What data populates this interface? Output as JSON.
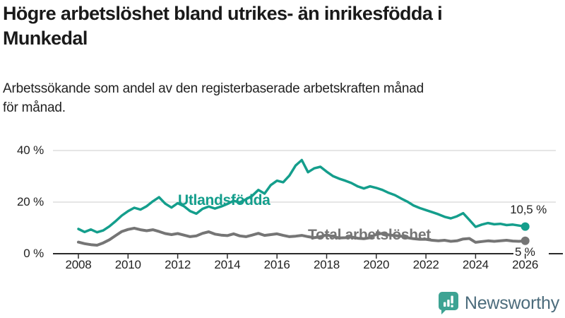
{
  "chart_data": {
    "type": "line",
    "title": "Högre arbetslöshet bland utrikes- än inrikesfödda i Munkedal",
    "title_lines": [
      "Högre arbetslöshet bland utrikes- än inrikesfödda i",
      "Munkedal"
    ],
    "subtitle": "Arbetssökande som andel av den registerbaserade arbetskraften månad för månad.",
    "subtitle_lines": [
      "Arbetssökande som andel av den registerbaserade arbetskraften månad",
      "för månad."
    ],
    "unit": "%",
    "x_start": 2008,
    "x_step": 0.25,
    "xlim": [
      2007,
      2026.5
    ],
    "ylim": [
      0,
      44
    ],
    "grid": "horizontal",
    "x_ticks": [
      2008,
      2010,
      2012,
      2014,
      2016,
      2018,
      2020,
      2022,
      2024,
      2026
    ],
    "y_ticks": [
      {
        "value": 40,
        "label": "40 %"
      },
      {
        "value": 20,
        "label": "20 %"
      },
      {
        "value": 0,
        "label": "0 %"
      }
    ],
    "series": [
      {
        "name": "Utlandsfödda",
        "color": "#149e8c",
        "end_label": "10,5 %",
        "end_value": 10.5,
        "values": [
          9.6,
          8.4,
          9.4,
          8.3,
          9.0,
          10.6,
          12.6,
          14.8,
          16.5,
          17.8,
          17.1,
          18.4,
          20.3,
          21.9,
          19.4,
          17.9,
          19.6,
          18.4,
          16.5,
          15.5,
          17.4,
          18.3,
          17.5,
          18.3,
          19.3,
          20.5,
          19.9,
          21.1,
          22.4,
          24.7,
          23.3,
          26.6,
          28.3,
          27.7,
          30.3,
          34.2,
          36.3,
          31.6,
          33.1,
          33.7,
          31.8,
          30.1,
          29.1,
          28.3,
          27.4,
          26.1,
          25.3,
          26.1,
          25.5,
          24.7,
          23.6,
          22.7,
          21.4,
          20.2,
          18.7,
          17.7,
          16.9,
          16.1,
          15.3,
          14.3,
          13.7,
          14.5,
          15.7,
          13.1,
          10.4,
          11.3,
          11.9,
          11.4,
          11.6,
          11.1,
          11.3,
          10.9,
          10.5
        ]
      },
      {
        "name": "Total arbetslöshet",
        "color": "#757575",
        "end_label": "5 %",
        "end_value": 5,
        "values": [
          4.5,
          3.9,
          3.5,
          3.3,
          4.2,
          5.4,
          7.0,
          8.6,
          9.4,
          9.9,
          9.3,
          8.9,
          9.3,
          8.6,
          7.8,
          7.4,
          7.8,
          7.2,
          6.6,
          6.9,
          7.9,
          8.5,
          7.6,
          7.2,
          7.0,
          7.7,
          6.9,
          6.6,
          7.2,
          7.9,
          7.1,
          7.4,
          7.7,
          7.1,
          6.6,
          6.8,
          7.1,
          6.6,
          6.2,
          6.6,
          7.3,
          6.7,
          6.1,
          6.2,
          6.5,
          6.0,
          5.8,
          6.2,
          7.5,
          7.9,
          7.3,
          7.0,
          6.8,
          6.2,
          5.8,
          5.6,
          5.6,
          5.2,
          5.0,
          5.2,
          4.8,
          5.0,
          5.7,
          5.9,
          4.4,
          4.7,
          5.0,
          4.8,
          5.0,
          5.2,
          4.9,
          4.8,
          5.0
        ]
      }
    ],
    "legend_position": "inline-labels"
  },
  "branding": {
    "logo_text": "Newsworthy",
    "logo_icon": "newsworthy-speech-bubble-barchart-icon",
    "logo_bubble_color": "#3da393",
    "logo_text_color": "#4c6c7c"
  },
  "colors": {
    "background": "#ffffff",
    "title_text": "#1a1a1a",
    "axis_text": "#222222",
    "gridline": "#cdcdcd",
    "axis_line": "#2b2b2b",
    "accent_teal": "#149e8c",
    "series_gray": "#757575"
  }
}
